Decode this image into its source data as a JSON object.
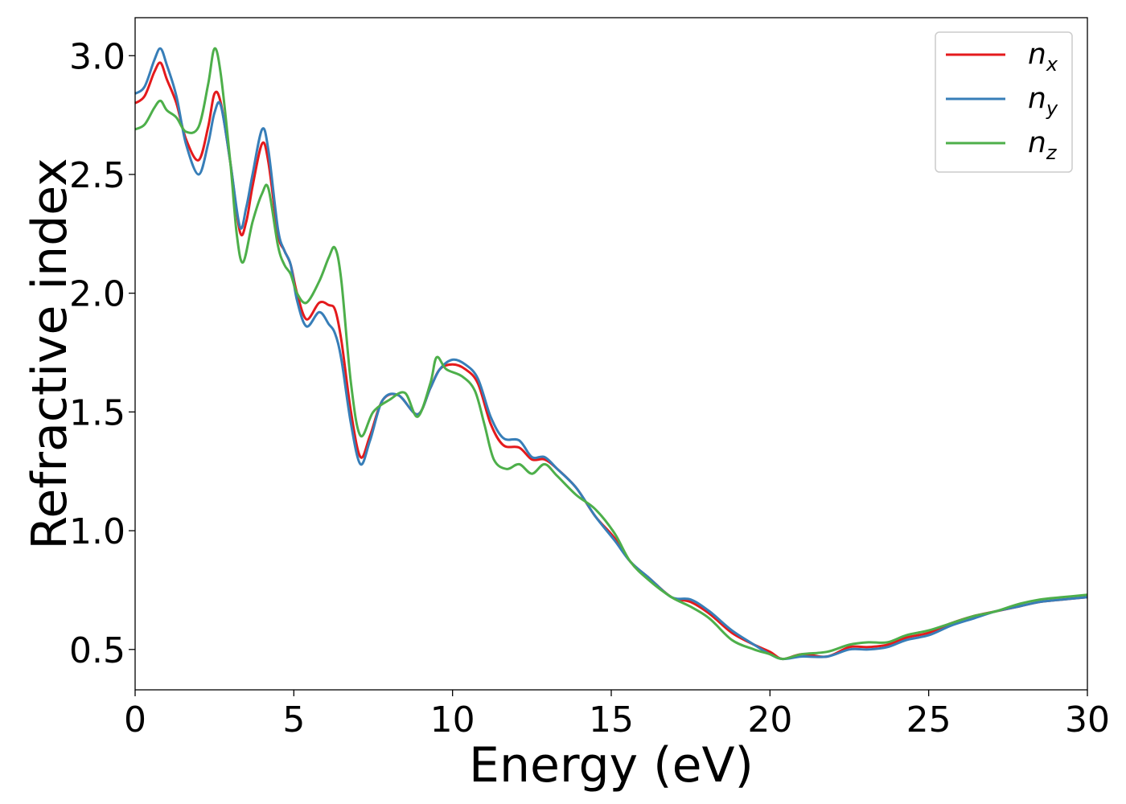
{
  "chart_data": {
    "type": "line",
    "title": "",
    "xlabel": "Energy (eV)",
    "ylabel": "Refractive index",
    "xlim": [
      0,
      30
    ],
    "ylim": [
      0.33,
      3.16
    ],
    "xticks": [
      0,
      5,
      10,
      15,
      20,
      25,
      30
    ],
    "yticks": [
      0.5,
      1.0,
      1.5,
      2.0,
      2.5,
      3.0
    ],
    "xtick_labels": [
      "0",
      "5",
      "10",
      "15",
      "20",
      "25",
      "30"
    ],
    "ytick_labels": [
      "0.5",
      "1.0",
      "1.5",
      "2.0",
      "2.5",
      "3.0"
    ],
    "grid": false,
    "legend": "upper-right",
    "series": [
      {
        "name": "n",
        "subscript": "x",
        "color": "#e41a1c",
        "points": [
          [
            0,
            2.8
          ],
          [
            0.3,
            2.83
          ],
          [
            0.6,
            2.93
          ],
          [
            0.8,
            2.97
          ],
          [
            1.0,
            2.9
          ],
          [
            1.3,
            2.8
          ],
          [
            1.6,
            2.65
          ],
          [
            2.0,
            2.56
          ],
          [
            2.3,
            2.7
          ],
          [
            2.5,
            2.84
          ],
          [
            2.7,
            2.8
          ],
          [
            3.0,
            2.55
          ],
          [
            3.3,
            2.26
          ],
          [
            3.5,
            2.3
          ],
          [
            3.7,
            2.45
          ],
          [
            4.0,
            2.63
          ],
          [
            4.2,
            2.55
          ],
          [
            4.5,
            2.25
          ],
          [
            4.7,
            2.18
          ],
          [
            4.9,
            2.12
          ],
          [
            5.1,
            2.0
          ],
          [
            5.4,
            1.89
          ],
          [
            5.8,
            1.96
          ],
          [
            6.1,
            1.95
          ],
          [
            6.3,
            1.93
          ],
          [
            6.5,
            1.8
          ],
          [
            6.8,
            1.5
          ],
          [
            7.1,
            1.31
          ],
          [
            7.4,
            1.4
          ],
          [
            7.8,
            1.55
          ],
          [
            8.3,
            1.57
          ],
          [
            8.9,
            1.49
          ],
          [
            9.3,
            1.6
          ],
          [
            9.6,
            1.68
          ],
          [
            10.0,
            1.7
          ],
          [
            10.4,
            1.68
          ],
          [
            10.8,
            1.62
          ],
          [
            11.2,
            1.45
          ],
          [
            11.6,
            1.36
          ],
          [
            12.1,
            1.35
          ],
          [
            12.5,
            1.3
          ],
          [
            12.9,
            1.3
          ],
          [
            13.3,
            1.26
          ],
          [
            13.9,
            1.18
          ],
          [
            14.5,
            1.06
          ],
          [
            15.1,
            0.97
          ],
          [
            15.6,
            0.87
          ],
          [
            16.2,
            0.8
          ],
          [
            16.9,
            0.72
          ],
          [
            17.5,
            0.7
          ],
          [
            18.1,
            0.65
          ],
          [
            18.8,
            0.57
          ],
          [
            19.5,
            0.52
          ],
          [
            20.0,
            0.49
          ],
          [
            20.4,
            0.46
          ],
          [
            21.0,
            0.48
          ],
          [
            21.8,
            0.47
          ],
          [
            22.5,
            0.51
          ],
          [
            23.1,
            0.51
          ],
          [
            23.7,
            0.52
          ],
          [
            24.3,
            0.55
          ],
          [
            25.0,
            0.57
          ],
          [
            25.7,
            0.61
          ],
          [
            26.4,
            0.64
          ],
          [
            27.1,
            0.66
          ],
          [
            27.8,
            0.68
          ],
          [
            28.5,
            0.7
          ],
          [
            29.2,
            0.71
          ],
          [
            30.0,
            0.72
          ]
        ]
      },
      {
        "name": "n",
        "subscript": "y",
        "color": "#377eb8",
        "points": [
          [
            0,
            2.84
          ],
          [
            0.3,
            2.87
          ],
          [
            0.6,
            2.98
          ],
          [
            0.8,
            3.03
          ],
          [
            1.0,
            2.96
          ],
          [
            1.3,
            2.83
          ],
          [
            1.6,
            2.63
          ],
          [
            2.0,
            2.5
          ],
          [
            2.3,
            2.63
          ],
          [
            2.5,
            2.76
          ],
          [
            2.7,
            2.79
          ],
          [
            3.0,
            2.55
          ],
          [
            3.3,
            2.28
          ],
          [
            3.5,
            2.36
          ],
          [
            3.7,
            2.5
          ],
          [
            4.0,
            2.69
          ],
          [
            4.2,
            2.6
          ],
          [
            4.5,
            2.27
          ],
          [
            4.7,
            2.18
          ],
          [
            4.9,
            2.12
          ],
          [
            5.1,
            1.97
          ],
          [
            5.4,
            1.86
          ],
          [
            5.8,
            1.92
          ],
          [
            6.1,
            1.87
          ],
          [
            6.3,
            1.83
          ],
          [
            6.5,
            1.72
          ],
          [
            6.8,
            1.45
          ],
          [
            7.1,
            1.28
          ],
          [
            7.4,
            1.38
          ],
          [
            7.8,
            1.55
          ],
          [
            8.3,
            1.57
          ],
          [
            8.9,
            1.49
          ],
          [
            9.3,
            1.6
          ],
          [
            9.6,
            1.68
          ],
          [
            10.0,
            1.72
          ],
          [
            10.4,
            1.7
          ],
          [
            10.8,
            1.64
          ],
          [
            11.2,
            1.48
          ],
          [
            11.6,
            1.39
          ],
          [
            12.1,
            1.38
          ],
          [
            12.5,
            1.31
          ],
          [
            12.9,
            1.31
          ],
          [
            13.3,
            1.26
          ],
          [
            13.9,
            1.18
          ],
          [
            14.5,
            1.06
          ],
          [
            15.1,
            0.96
          ],
          [
            15.6,
            0.87
          ],
          [
            16.2,
            0.8
          ],
          [
            16.9,
            0.72
          ],
          [
            17.5,
            0.71
          ],
          [
            18.1,
            0.66
          ],
          [
            18.8,
            0.58
          ],
          [
            19.5,
            0.52
          ],
          [
            20.0,
            0.48
          ],
          [
            20.4,
            0.46
          ],
          [
            21.0,
            0.47
          ],
          [
            21.8,
            0.47
          ],
          [
            22.5,
            0.5
          ],
          [
            23.1,
            0.5
          ],
          [
            23.7,
            0.51
          ],
          [
            24.3,
            0.54
          ],
          [
            25.0,
            0.56
          ],
          [
            25.7,
            0.6
          ],
          [
            26.4,
            0.63
          ],
          [
            27.1,
            0.66
          ],
          [
            27.8,
            0.68
          ],
          [
            28.5,
            0.7
          ],
          [
            29.2,
            0.71
          ],
          [
            30.0,
            0.72
          ]
        ]
      },
      {
        "name": "n",
        "subscript": "z",
        "color": "#4daf4a",
        "points": [
          [
            0,
            2.69
          ],
          [
            0.3,
            2.71
          ],
          [
            0.6,
            2.78
          ],
          [
            0.8,
            2.81
          ],
          [
            1.0,
            2.77
          ],
          [
            1.3,
            2.74
          ],
          [
            1.6,
            2.68
          ],
          [
            2.0,
            2.7
          ],
          [
            2.3,
            2.88
          ],
          [
            2.5,
            3.03
          ],
          [
            2.7,
            2.92
          ],
          [
            3.0,
            2.55
          ],
          [
            3.2,
            2.25
          ],
          [
            3.4,
            2.13
          ],
          [
            3.7,
            2.3
          ],
          [
            4.0,
            2.42
          ],
          [
            4.2,
            2.44
          ],
          [
            4.5,
            2.2
          ],
          [
            4.7,
            2.12
          ],
          [
            4.9,
            2.08
          ],
          [
            5.1,
            2.0
          ],
          [
            5.4,
            1.96
          ],
          [
            5.8,
            2.05
          ],
          [
            6.1,
            2.15
          ],
          [
            6.3,
            2.19
          ],
          [
            6.5,
            2.05
          ],
          [
            6.8,
            1.62
          ],
          [
            7.1,
            1.4
          ],
          [
            7.5,
            1.5
          ],
          [
            8.0,
            1.55
          ],
          [
            8.5,
            1.58
          ],
          [
            8.9,
            1.48
          ],
          [
            9.3,
            1.62
          ],
          [
            9.5,
            1.73
          ],
          [
            9.8,
            1.68
          ],
          [
            10.3,
            1.65
          ],
          [
            10.7,
            1.59
          ],
          [
            11.0,
            1.45
          ],
          [
            11.3,
            1.3
          ],
          [
            11.7,
            1.26
          ],
          [
            12.1,
            1.28
          ],
          [
            12.5,
            1.24
          ],
          [
            12.9,
            1.28
          ],
          [
            13.3,
            1.23
          ],
          [
            13.9,
            1.15
          ],
          [
            14.5,
            1.09
          ],
          [
            15.1,
            0.99
          ],
          [
            15.6,
            0.87
          ],
          [
            16.2,
            0.79
          ],
          [
            16.9,
            0.72
          ],
          [
            17.5,
            0.68
          ],
          [
            18.1,
            0.63
          ],
          [
            18.8,
            0.54
          ],
          [
            19.5,
            0.5
          ],
          [
            20.0,
            0.48
          ],
          [
            20.4,
            0.46
          ],
          [
            21.0,
            0.48
          ],
          [
            21.8,
            0.49
          ],
          [
            22.5,
            0.52
          ],
          [
            23.1,
            0.53
          ],
          [
            23.7,
            0.53
          ],
          [
            24.3,
            0.56
          ],
          [
            25.0,
            0.58
          ],
          [
            25.7,
            0.61
          ],
          [
            26.4,
            0.64
          ],
          [
            27.1,
            0.66
          ],
          [
            27.8,
            0.69
          ],
          [
            28.5,
            0.71
          ],
          [
            29.2,
            0.72
          ],
          [
            30.0,
            0.73
          ]
        ]
      }
    ]
  }
}
